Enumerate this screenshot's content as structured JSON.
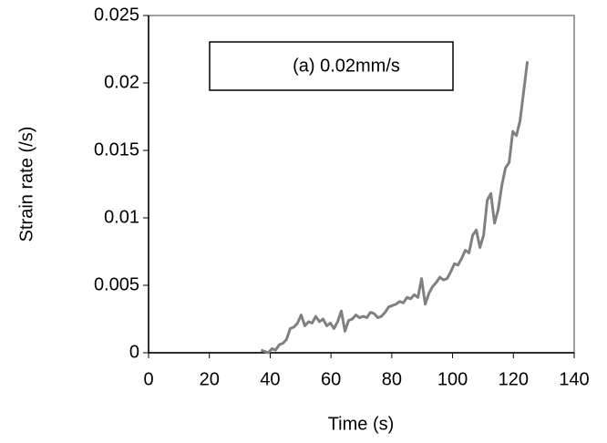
{
  "chart_data": {
    "type": "line",
    "annotation": "(a)  0.02mm/s",
    "x_label": "Time (s)",
    "y_label": "Strain rate (/s)",
    "xlim": [
      0,
      140
    ],
    "xticks": [
      0,
      20,
      40,
      60,
      80,
      100,
      120,
      140
    ],
    "ylim": [
      0,
      0.025
    ],
    "yticks": [
      0,
      0.005,
      0.01,
      0.015,
      0.02,
      0.025
    ],
    "x": [
      37.0,
      38.2,
      39.4,
      40.6,
      41.8,
      43.0,
      44.2,
      45.4,
      46.6,
      47.8,
      49.0,
      50.2,
      51.4,
      52.6,
      53.8,
      55.0,
      56.2,
      57.4,
      58.6,
      59.8,
      61.0,
      62.2,
      63.4,
      64.6,
      65.8,
      67.0,
      68.2,
      69.4,
      70.6,
      71.8,
      73.0,
      74.2,
      75.4,
      76.6,
      77.8,
      79.0,
      80.2,
      81.4,
      82.6,
      83.8,
      85.0,
      86.2,
      87.4,
      88.6,
      89.8,
      91.0,
      92.2,
      93.4,
      94.6,
      95.8,
      97.0,
      98.2,
      99.4,
      100.6,
      101.8,
      103.0,
      104.2,
      105.4,
      106.6,
      107.8,
      109.0,
      110.2,
      111.4,
      112.6,
      113.8,
      115.0,
      116.2,
      117.4,
      118.6,
      119.8,
      121.0,
      122.2,
      123.4,
      124.6
    ],
    "series": [
      {
        "color": "#808080",
        "values": [
          0.0002,
          0.0001,
          0,
          0.0003,
          0.0002,
          0.0006,
          0.0007,
          0.001,
          0.0018,
          0.0019,
          0.0022,
          0.0028,
          0.002,
          0.0023,
          0.0022,
          0.0027,
          0.0023,
          0.0025,
          0.002,
          0.0022,
          0.0018,
          0.0023,
          0.0031,
          0.0016,
          0.0024,
          0.0025,
          0.0028,
          0.0026,
          0.0027,
          0.0026,
          0.003,
          0.0029,
          0.0026,
          0.0027,
          0.003,
          0.0034,
          0.0035,
          0.0036,
          0.0038,
          0.0037,
          0.0041,
          0.004,
          0.0043,
          0.0041,
          0.0055,
          0.0036,
          0.0044,
          0.0049,
          0.0052,
          0.0056,
          0.0054,
          0.0055,
          0.006,
          0.0066,
          0.0065,
          0.007,
          0.0076,
          0.0074,
          0.0087,
          0.0091,
          0.0078,
          0.0087,
          0.0113,
          0.0118,
          0.0096,
          0.0106,
          0.0124,
          0.0137,
          0.0141,
          0.0164,
          0.0161,
          0.0172,
          0.0194,
          0.0216
        ]
      }
    ]
  }
}
